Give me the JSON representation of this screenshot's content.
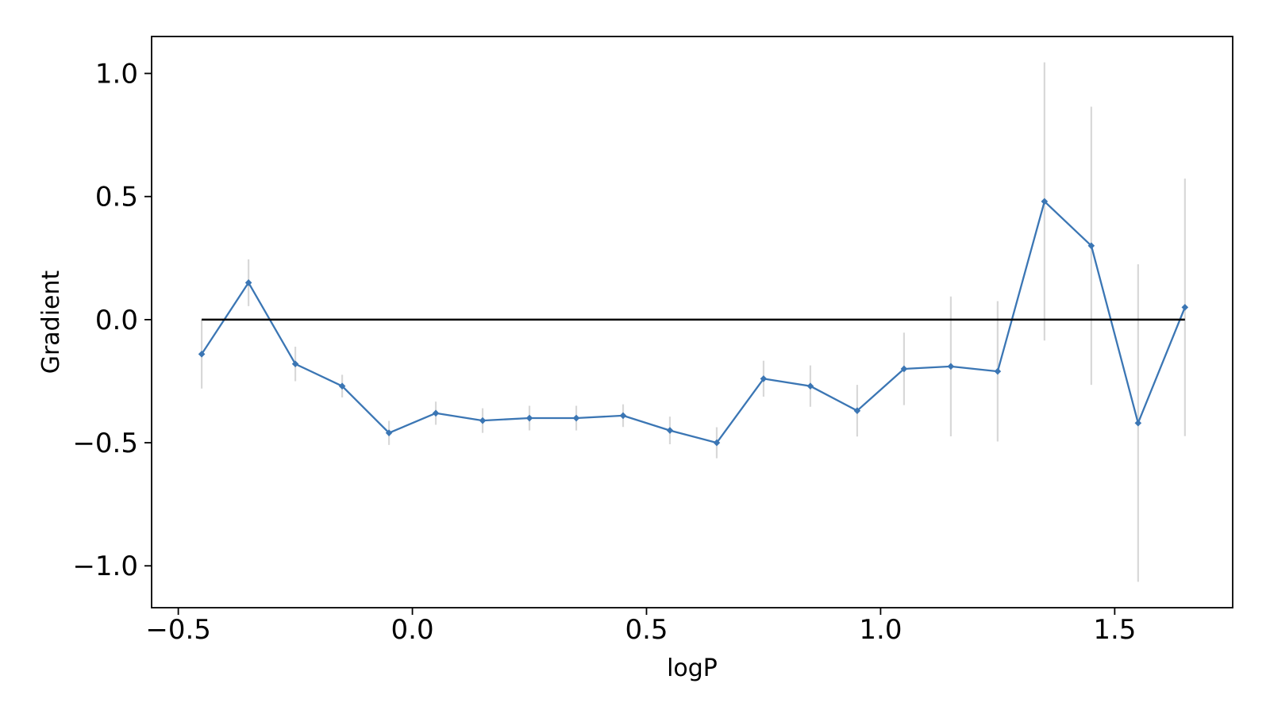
{
  "figure": {
    "background": "#ffffff"
  },
  "chart_data": {
    "type": "line",
    "title": "",
    "xlabel": "logP",
    "ylabel": "Gradient",
    "x": [
      -0.45,
      -0.35,
      -0.25,
      -0.15,
      -0.05,
      0.05,
      0.15,
      0.25,
      0.35,
      0.45,
      0.55,
      0.65,
      0.75,
      0.85,
      0.95,
      1.05,
      1.15,
      1.25,
      1.35,
      1.45,
      1.55,
      1.65
    ],
    "y": [
      -0.14,
      0.15,
      -0.18,
      -0.27,
      -0.46,
      -0.38,
      -0.41,
      -0.4,
      -0.4,
      -0.39,
      -0.45,
      -0.5,
      -0.24,
      -0.27,
      -0.37,
      -0.2,
      -0.19,
      -0.21,
      0.48,
      0.3,
      -0.42,
      0.05
    ],
    "yerr": [
      0.14,
      0.095,
      0.07,
      0.046,
      0.049,
      0.047,
      0.05,
      0.05,
      0.05,
      0.046,
      0.056,
      0.063,
      0.073,
      0.084,
      0.105,
      0.147,
      0.284,
      0.285,
      0.565,
      0.565,
      0.645,
      0.523
    ],
    "xlim": [
      -0.557,
      1.752
    ],
    "ylim": [
      -1.17,
      1.15
    ],
    "xticks": {
      "values": [
        -0.5,
        0.0,
        0.5,
        1.0,
        1.5
      ],
      "labels": [
        "−0.5",
        "0.0",
        "0.5",
        "1.0",
        "1.5"
      ]
    },
    "yticks": {
      "values": [
        1.0,
        0.5,
        0.0,
        -0.5,
        -1.0
      ],
      "labels": [
        "1.0",
        "0.5",
        "0.0",
        "−0.5",
        "−1.0"
      ]
    },
    "zero_line": {
      "y": 0.0,
      "x_start": -0.45,
      "x_end": 1.65,
      "color": "#000000"
    },
    "line_color": "#3b76b4",
    "marker": "diamond",
    "error_bar_color": "#d8d8d8",
    "spine_color": "#000000",
    "grid": false,
    "legend": null
  }
}
